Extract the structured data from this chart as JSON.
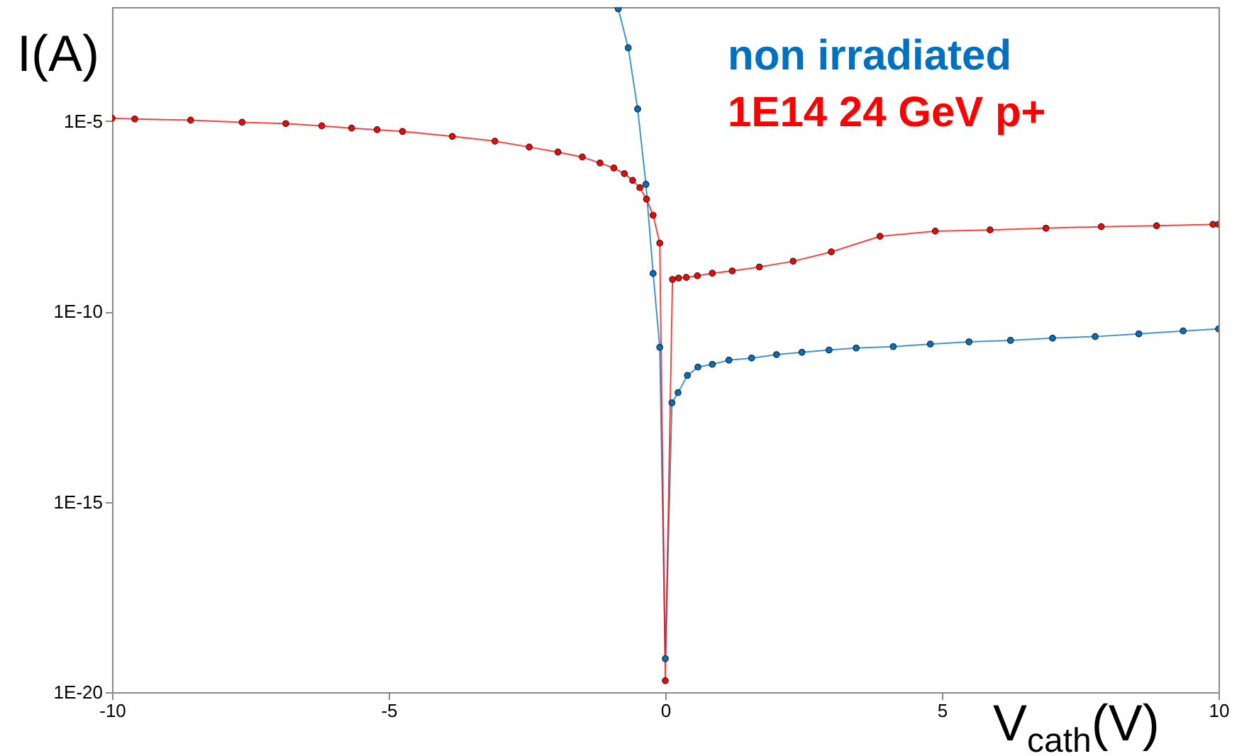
{
  "chart_data": {
    "type": "line",
    "xlabel": "V$_{cath}$(V)",
    "ylabel": "I(A)",
    "log": "y",
    "xlim": [
      -10,
      10
    ],
    "xticks": [
      -10,
      -5,
      0,
      5,
      10
    ],
    "ylim": [
      1e-20,
      0.01
    ],
    "yticks": [
      {
        "value": 1e-05,
        "label": "1E-5"
      },
      {
        "value": 1e-10,
        "label": "1E-10"
      },
      {
        "value": 1e-15,
        "label": "1E-15"
      },
      {
        "value": 1e-20,
        "label": "1E-20"
      }
    ],
    "grid": false,
    "legend": "top",
    "marker": "circle",
    "line_style": "solid",
    "series": [
      {
        "name": "non irradiated",
        "color": "#0070c0",
        "x": [
          -0.85,
          -0.67,
          -0.5,
          -0.35,
          -0.22,
          -0.1,
          0,
          0.12,
          0.23,
          0.4,
          0.59,
          0.85,
          1.15,
          1.56,
          2.01,
          2.47,
          2.96,
          3.45,
          4.12,
          4.79,
          5.49,
          6.24,
          7.0,
          7.77,
          8.56,
          9.36,
          10
        ],
        "values": [
          0.009,
          0.00085,
          2.1e-05,
          2.2e-07,
          1e-09,
          1.15e-11,
          7.6e-20,
          4e-13,
          7.4e-13,
          2.1e-12,
          3.5e-12,
          4.1e-12,
          5.3e-12,
          6e-12,
          7.4e-12,
          8.5e-12,
          9.8e-12,
          1.1e-11,
          1.2e-11,
          1.4e-11,
          1.6e-11,
          1.75e-11,
          2e-11,
          2.2e-11,
          2.6e-11,
          3.1e-11,
          3.5e-11
        ]
      },
      {
        "name": "1E14 24 GeV p+",
        "color": "#ff0000",
        "x": [
          -10,
          -9.59,
          -8.58,
          -7.65,
          -6.86,
          -6.21,
          -5.67,
          -5.21,
          -4.75,
          -3.85,
          -3.08,
          -2.46,
          -1.94,
          -1.5,
          -1.18,
          -0.93,
          -0.74,
          -0.59,
          -0.46,
          -0.34,
          -0.22,
          -0.1,
          0,
          0.13,
          0.24,
          0.38,
          0.58,
          0.85,
          1.21,
          1.7,
          2.31,
          3.0,
          3.88,
          4.88,
          5.87,
          6.88,
          7.88,
          8.88,
          9.9,
          10
        ],
        "values": [
          1.2e-05,
          1.15e-05,
          1.07e-05,
          9.4e-06,
          8.7e-06,
          7.6e-06,
          6.6e-06,
          6e-06,
          5.4e-06,
          4e-06,
          3e-06,
          2.1e-06,
          1.55e-06,
          1.15e-06,
          8e-07,
          5.9e-07,
          4.2e-07,
          2.8e-07,
          1.8e-07,
          9e-08,
          3.4e-08,
          6.3e-09,
          2e-20,
          7e-10,
          7.6e-10,
          7.9e-10,
          8.7e-10,
          1.02e-09,
          1.17e-09,
          1.48e-09,
          2.1e-09,
          3.7e-09,
          9.5e-09,
          1.3e-08,
          1.4e-08,
          1.55e-08,
          1.7e-08,
          1.8e-08,
          1.95e-08,
          1.95e-08
        ]
      }
    ]
  }
}
